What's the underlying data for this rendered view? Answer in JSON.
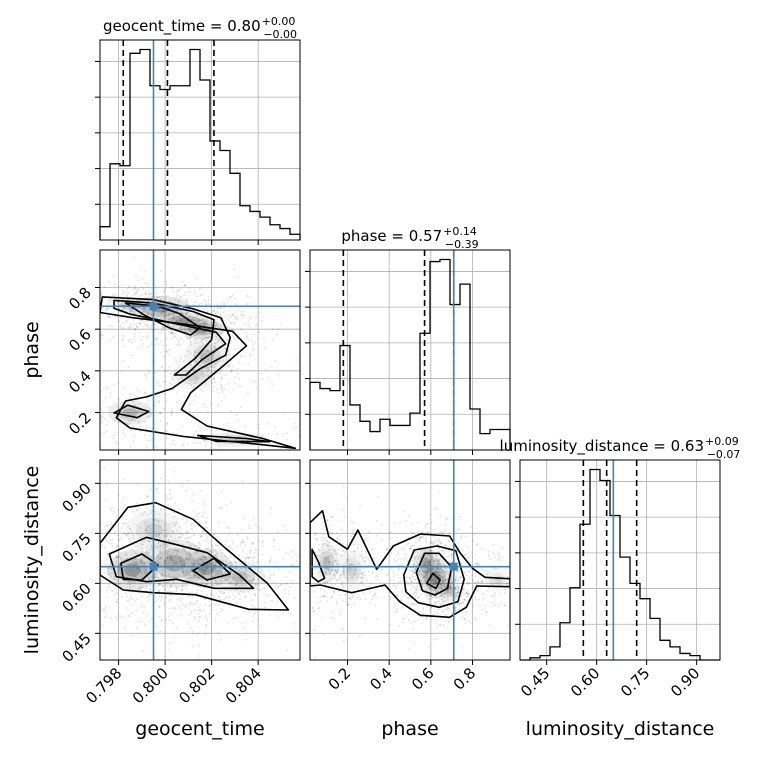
{
  "colors": {
    "truth": "#4682b4",
    "line": "#000000",
    "grid": "#b0b0b0",
    "scatter": "#000000"
  },
  "chart_data": {
    "type": "corner",
    "parameters": [
      "geocent_time",
      "phase",
      "luminosity_distance"
    ],
    "truths": {
      "geocent_time": 0.7995,
      "phase": 0.71,
      "luminosity_distance": 0.65
    },
    "ranges": {
      "geocent_time": [
        0.7972,
        0.8058
      ],
      "phase": [
        0.02,
        0.98
      ],
      "luminosity_distance": [
        0.37,
        0.97
      ]
    },
    "grid": true,
    "titles": {
      "geocent_time": {
        "label": "geocent_time = 0.80",
        "plus": "+0.00",
        "minus": "−0.00"
      },
      "phase": {
        "label": "phase = 0.57",
        "plus": "+0.14",
        "minus": "−0.39"
      },
      "luminosity_distance": {
        "label": "luminosity_distance = 0.63",
        "plus": "+0.09",
        "minus": "−0.07"
      }
    },
    "axis_labels": {
      "geocent_time": "geocent_time",
      "phase": "phase",
      "luminosity_distance": "luminosity_distance"
    },
    "ticks": {
      "geocent_time": {
        "values": [
          0.798,
          0.8,
          0.802,
          0.804
        ],
        "labels": [
          "0.798",
          "0.800",
          "0.802",
          "0.804"
        ]
      },
      "phase": {
        "values": [
          0.2,
          0.4,
          0.6,
          0.8
        ],
        "labels": [
          "0.2",
          "0.4",
          "0.6",
          "0.8"
        ]
      },
      "luminosity_distance": {
        "values": [
          0.45,
          0.6,
          0.75,
          0.9
        ],
        "labels": [
          "0.45",
          "0.60",
          "0.75",
          "0.90"
        ]
      }
    },
    "quantiles": {
      "geocent_time": [
        0.7982,
        0.8001,
        0.8021
      ],
      "phase": [
        0.18,
        0.57,
        0.71
      ],
      "luminosity_distance": [
        0.56,
        0.63,
        0.72
      ]
    },
    "histograms": {
      "geocent_time": {
        "edges": [
          0.7972,
          0.79763,
          0.79806,
          0.79849,
          0.79892,
          0.79935,
          0.79978,
          0.80021,
          0.80064,
          0.80107,
          0.8015,
          0.80193,
          0.80236,
          0.80279,
          0.80322,
          0.80365,
          0.80408,
          0.80451,
          0.80494,
          0.80537,
          0.8058
        ],
        "counts": [
          7,
          40,
          39,
          98,
          100,
          81,
          79,
          81,
          81,
          100,
          84,
          52,
          47,
          35,
          18,
          15,
          12,
          8,
          6,
          3
        ]
      },
      "phase": {
        "edges": [
          0.02,
          0.068,
          0.116,
          0.164,
          0.212,
          0.26,
          0.308,
          0.356,
          0.404,
          0.452,
          0.5,
          0.548,
          0.596,
          0.644,
          0.692,
          0.74,
          0.788,
          0.836,
          0.884,
          0.932,
          0.98
        ],
        "counts": [
          33,
          30,
          29,
          51,
          22,
          14,
          9,
          15,
          12,
          12,
          18,
          57,
          92,
          93,
          71,
          81,
          20,
          8,
          10,
          10
        ]
      },
      "luminosity_distance": {
        "edges": [
          0.37,
          0.4,
          0.43,
          0.46,
          0.49,
          0.52,
          0.55,
          0.58,
          0.61,
          0.64,
          0.67,
          0.7,
          0.73,
          0.76,
          0.79,
          0.82,
          0.85,
          0.88,
          0.91,
          0.94,
          0.97
        ],
        "counts": [
          0,
          1,
          2,
          6,
          17,
          33,
          62,
          87,
          82,
          66,
          47,
          35,
          28,
          19,
          9,
          6,
          3,
          2,
          0,
          0
        ]
      }
    },
    "contours": [
      {
        "x": "geocent_time",
        "y": "phase",
        "levels": [
          [
            [
              0.7973,
              0.755
            ],
            [
              0.7995,
              0.742
            ],
            [
              0.8012,
              0.698
            ],
            [
              0.8024,
              0.655
            ],
            [
              0.8028,
              0.56
            ],
            [
              0.8026,
              0.475
            ],
            [
              0.8015,
              0.41
            ],
            [
              0.8003,
              0.315
            ],
            [
              0.7992,
              0.275
            ],
            [
              0.7983,
              0.255
            ],
            [
              0.7979,
              0.175
            ],
            [
              0.7985,
              0.125
            ],
            [
              0.8008,
              0.085
            ],
            [
              0.8038,
              0.05
            ],
            [
              0.8056,
              0.028
            ],
            [
              0.8042,
              0.075
            ],
            [
              0.8018,
              0.135
            ],
            [
              0.8007,
              0.215
            ],
            [
              0.8011,
              0.295
            ],
            [
              0.8023,
              0.405
            ],
            [
              0.8035,
              0.52
            ],
            [
              0.8029,
              0.59
            ],
            [
              0.8008,
              0.625
            ],
            [
              0.7986,
              0.655
            ],
            [
              0.7972,
              0.68
            ]
          ],
          [
            [
              0.7978,
              0.738
            ],
            [
              0.7995,
              0.725
            ],
            [
              0.8012,
              0.685
            ],
            [
              0.8021,
              0.645
            ],
            [
              0.802,
              0.55
            ],
            [
              0.8013,
              0.46
            ],
            [
              0.8004,
              0.38
            ],
            [
              0.8009,
              0.38
            ],
            [
              0.8016,
              0.455
            ],
            [
              0.8026,
              0.53
            ],
            [
              0.8022,
              0.585
            ],
            [
              0.8004,
              0.628
            ],
            [
              0.7985,
              0.672
            ],
            [
              0.7978,
              0.7
            ]
          ],
          [
            [
              0.7983,
              0.726
            ],
            [
              0.7997,
              0.71
            ],
            [
              0.8006,
              0.675
            ],
            [
              0.8015,
              0.608
            ],
            [
              0.8011,
              0.572
            ],
            [
              0.8002,
              0.605
            ],
            [
              0.7991,
              0.668
            ]
          ],
          [
            [
              0.7984,
              0.235
            ],
            [
              0.7993,
              0.205
            ],
            [
              0.7988,
              0.175
            ],
            [
              0.7978,
              0.198
            ]
          ],
          [
            [
              0.8014,
              0.09
            ],
            [
              0.8035,
              0.075
            ],
            [
              0.8045,
              0.06
            ],
            [
              0.8022,
              0.062
            ]
          ]
        ]
      },
      {
        "x": "geocent_time",
        "y": "luminosity_distance",
        "levels": [
          [
            [
              0.7972,
              0.72
            ],
            [
              0.7984,
              0.828
            ],
            [
              0.7996,
              0.842
            ],
            [
              0.8012,
              0.792
            ],
            [
              0.8026,
              0.705
            ],
            [
              0.8044,
              0.6
            ],
            [
              0.8053,
              0.52
            ],
            [
              0.8036,
              0.522
            ],
            [
              0.8013,
              0.566
            ],
            [
              0.7995,
              0.572
            ],
            [
              0.7982,
              0.58
            ],
            [
              0.7972,
              0.625
            ]
          ],
          [
            [
              0.7976,
              0.688
            ],
            [
              0.7992,
              0.738
            ],
            [
              0.8005,
              0.716
            ],
            [
              0.8018,
              0.692
            ],
            [
              0.8032,
              0.625
            ],
            [
              0.8038,
              0.585
            ],
            [
              0.8021,
              0.585
            ],
            [
              0.8005,
              0.612
            ],
            [
              0.7992,
              0.605
            ],
            [
              0.7979,
              0.62
            ]
          ],
          [
            [
              0.7981,
              0.66
            ],
            [
              0.799,
              0.688
            ],
            [
              0.7997,
              0.655
            ],
            [
              0.799,
              0.61
            ],
            [
              0.7982,
              0.612
            ]
          ],
          [
            [
              0.8012,
              0.638
            ],
            [
              0.8021,
              0.675
            ],
            [
              0.8028,
              0.628
            ],
            [
              0.8018,
              0.61
            ]
          ]
        ]
      },
      {
        "x": "phase",
        "y": "luminosity_distance",
        "levels": [
          [
            [
              0.02,
              0.782
            ],
            [
              0.08,
              0.818
            ],
            [
              0.11,
              0.74
            ],
            [
              0.2,
              0.702
            ],
            [
              0.25,
              0.76
            ],
            [
              0.34,
              0.642
            ],
            [
              0.42,
              0.712
            ],
            [
              0.55,
              0.748
            ],
            [
              0.69,
              0.742
            ],
            [
              0.74,
              0.692
            ],
            [
              0.8,
              0.645
            ],
            [
              0.86,
              0.618
            ],
            [
              0.98,
              0.614
            ],
            [
              0.98,
              0.59
            ],
            [
              0.82,
              0.592
            ],
            [
              0.77,
              0.528
            ],
            [
              0.69,
              0.498
            ],
            [
              0.55,
              0.504
            ],
            [
              0.45,
              0.545
            ],
            [
              0.38,
              0.595
            ],
            [
              0.22,
              0.572
            ],
            [
              0.07,
              0.595
            ],
            [
              0.02,
              0.592
            ]
          ],
          [
            [
              0.03,
              0.702
            ],
            [
              0.06,
              0.665
            ],
            [
              0.09,
              0.615
            ],
            [
              0.06,
              0.605
            ],
            [
              0.03,
              0.62
            ]
          ],
          [
            [
              0.47,
              0.625
            ],
            [
              0.52,
              0.7
            ],
            [
              0.63,
              0.712
            ],
            [
              0.72,
              0.698
            ],
            [
              0.76,
              0.612
            ],
            [
              0.73,
              0.545
            ],
            [
              0.64,
              0.528
            ],
            [
              0.54,
              0.542
            ],
            [
              0.48,
              0.575
            ]
          ],
          [
            [
              0.53,
              0.632
            ],
            [
              0.57,
              0.69
            ],
            [
              0.64,
              0.69
            ],
            [
              0.7,
              0.648
            ],
            [
              0.68,
              0.585
            ],
            [
              0.62,
              0.565
            ],
            [
              0.56,
              0.578
            ]
          ],
          [
            [
              0.58,
              0.6
            ],
            [
              0.61,
              0.63
            ],
            [
              0.645,
              0.61
            ],
            [
              0.625,
              0.585
            ]
          ]
        ]
      }
    ],
    "densities": [
      {
        "x": "geocent_time",
        "y": "phase",
        "blobs": [
          [
            0.7998,
            0.7,
            0.0011,
            0.05,
            1.0
          ],
          [
            0.8008,
            0.64,
            0.0009,
            0.035,
            0.9
          ],
          [
            0.8016,
            0.6,
            0.0008,
            0.04,
            1.0
          ],
          [
            0.8018,
            0.47,
            0.0008,
            0.08,
            0.55
          ],
          [
            0.8012,
            0.37,
            0.0008,
            0.05,
            0.4
          ],
          [
            0.7985,
            0.2,
            0.0008,
            0.05,
            0.7
          ],
          [
            0.803,
            0.07,
            0.0012,
            0.03,
            0.5
          ],
          [
            0.7985,
            0.715,
            0.0006,
            0.03,
            0.7
          ]
        ]
      },
      {
        "x": "geocent_time",
        "y": "luminosity_distance",
        "blobs": [
          [
            0.7986,
            0.64,
            0.0009,
            0.05,
            1.0
          ],
          [
            0.8004,
            0.66,
            0.0012,
            0.06,
            0.8
          ],
          [
            0.8018,
            0.645,
            0.0009,
            0.05,
            0.9
          ],
          [
            0.8032,
            0.62,
            0.0009,
            0.04,
            0.6
          ],
          [
            0.7995,
            0.76,
            0.001,
            0.05,
            0.4
          ]
        ]
      },
      {
        "x": "phase",
        "y": "luminosity_distance",
        "blobs": [
          [
            0.62,
            0.615,
            0.07,
            0.05,
            1.0
          ],
          [
            0.58,
            0.66,
            0.05,
            0.04,
            0.8
          ],
          [
            0.69,
            0.58,
            0.04,
            0.03,
            0.6
          ],
          [
            0.1,
            0.66,
            0.05,
            0.05,
            0.6
          ],
          [
            0.22,
            0.64,
            0.06,
            0.05,
            0.4
          ],
          [
            0.92,
            0.61,
            0.05,
            0.03,
            0.3
          ]
        ]
      }
    ]
  }
}
